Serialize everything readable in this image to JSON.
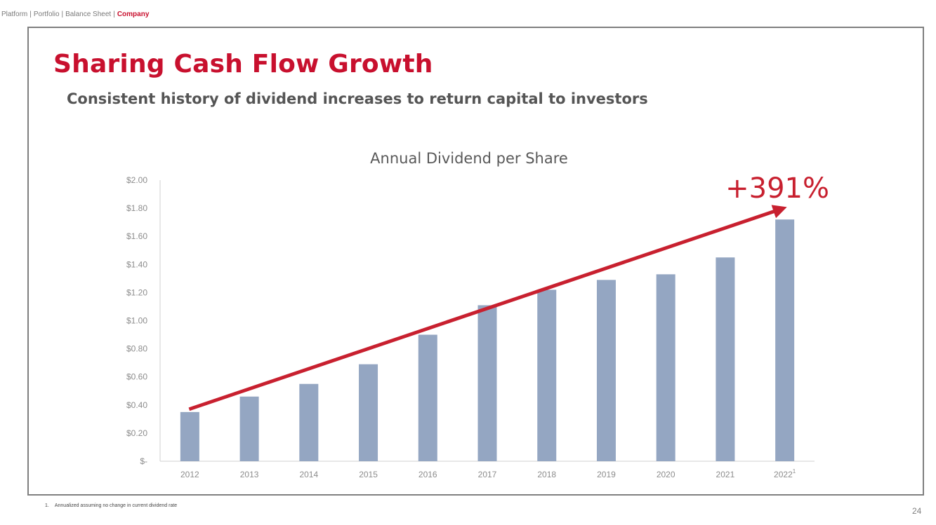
{
  "breadcrumb": {
    "items": [
      "Platform",
      "Portfolio",
      "Balance Sheet",
      "Company"
    ],
    "separator": "|",
    "active_index": 3
  },
  "header": {
    "title": "Sharing Cash Flow Growth",
    "subtitle": "Consistent history of dividend increases to return capital to investors"
  },
  "chart_data": {
    "type": "bar",
    "title": "Annual Dividend per Share",
    "categories": [
      "2012",
      "2013",
      "2014",
      "2015",
      "2016",
      "2017",
      "2018",
      "2019",
      "2020",
      "2021",
      "2022"
    ],
    "category_superscripts": {
      "2022": "1"
    },
    "values": [
      0.35,
      0.46,
      0.55,
      0.69,
      0.9,
      1.11,
      1.22,
      1.29,
      1.33,
      1.45,
      1.72
    ],
    "ylim": [
      0,
      2.0
    ],
    "y_ticks": [
      0,
      0.2,
      0.4,
      0.6,
      0.8,
      1.0,
      1.2,
      1.4,
      1.6,
      1.8,
      2.0
    ],
    "y_tick_labels": [
      "$-",
      "$0.20",
      "$0.40",
      "$0.60",
      "$0.80",
      "$1.00",
      "$1.20",
      "$1.40",
      "$1.60",
      "$1.80",
      "$2.00"
    ],
    "xlabel": "",
    "ylabel": "",
    "grid": false,
    "legend": "none",
    "annotation": {
      "label": "+391%",
      "type": "arrow",
      "from": {
        "x": "2012",
        "y": 0.37
      },
      "to": {
        "x": "2022",
        "y": 1.81
      }
    },
    "colors": {
      "bar": "#94a6c2",
      "arrow": "#c8202f",
      "annotation_text": "#c8202f",
      "tick_text": "#8c8c8c",
      "title_text": "#595959",
      "axis": "#d0d0d0"
    }
  },
  "footnote": {
    "number": "1.",
    "text": "Annualized assuming no change in current dividend rate"
  },
  "page_number": "24"
}
